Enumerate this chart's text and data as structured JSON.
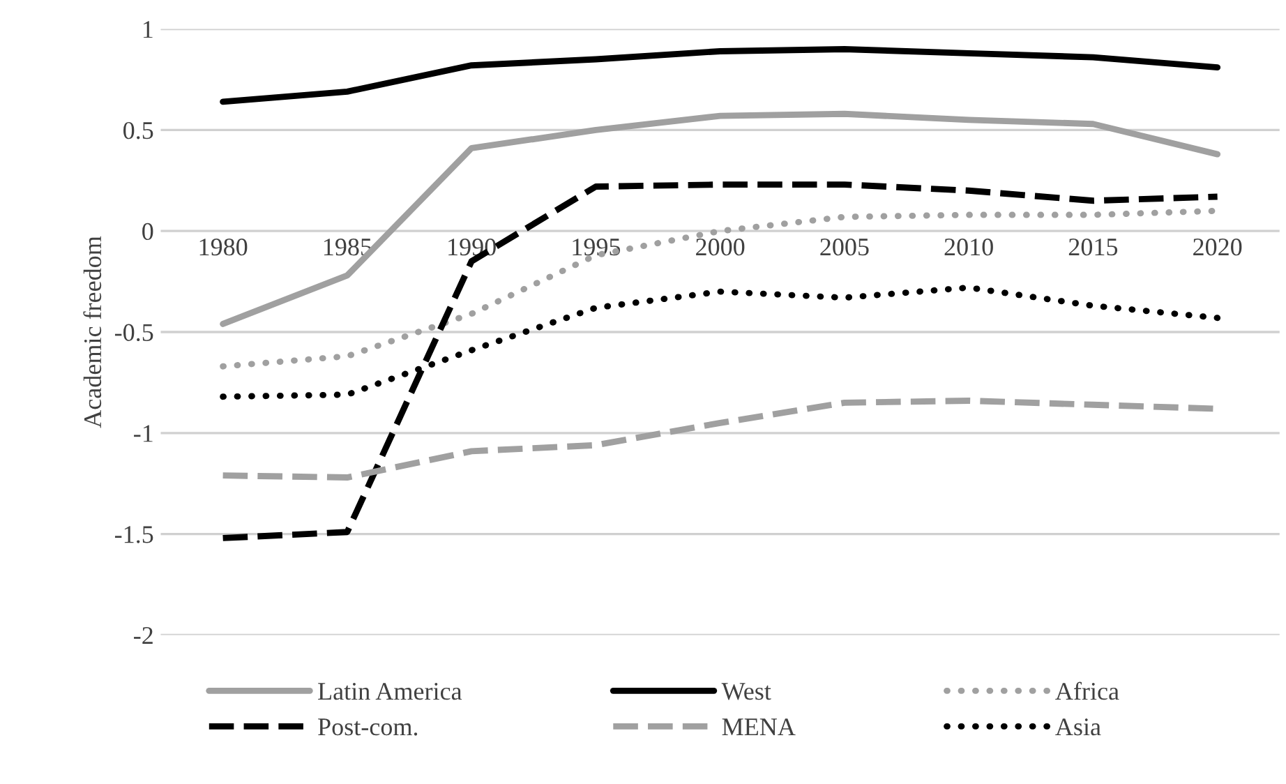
{
  "chart_data": {
    "type": "line",
    "ylabel": "Academic freedom",
    "categories": [
      "1980",
      "1985",
      "1990",
      "1995",
      "2000",
      "2005",
      "2010",
      "2015",
      "2020"
    ],
    "series": [
      {
        "name": "Latin America",
        "color": "#a0a0a0",
        "line_style": "solid",
        "values": [
          -0.46,
          -0.22,
          0.41,
          0.5,
          0.57,
          0.58,
          0.55,
          0.53,
          0.38
        ]
      },
      {
        "name": "West",
        "color": "#000000",
        "line_style": "solid",
        "values": [
          0.64,
          0.69,
          0.82,
          0.85,
          0.89,
          0.9,
          0.88,
          0.86,
          0.81
        ]
      },
      {
        "name": "Africa",
        "color": "#a0a0a0",
        "line_style": "dotted",
        "values": [
          -0.67,
          -0.62,
          -0.41,
          -0.12,
          0.0,
          0.07,
          0.08,
          0.08,
          0.1
        ]
      },
      {
        "name": "Post-com.",
        "color": "#000000",
        "line_style": "dashed",
        "values": [
          -1.52,
          -1.49,
          -0.15,
          0.22,
          0.23,
          0.23,
          0.2,
          0.15,
          0.17
        ]
      },
      {
        "name": "MENA",
        "color": "#a0a0a0",
        "line_style": "dashed",
        "values": [
          -1.21,
          -1.22,
          -1.09,
          -1.06,
          -0.95,
          -0.85,
          -0.84,
          -0.86,
          -0.88
        ]
      },
      {
        "name": "Asia",
        "color": "#000000",
        "line_style": "dotted",
        "values": [
          -0.82,
          -0.81,
          -0.59,
          -0.38,
          -0.3,
          -0.33,
          -0.28,
          -0.37,
          -0.43
        ]
      }
    ],
    "ylim": [
      -2,
      1
    ],
    "yticks": [
      -2,
      -1.5,
      -1,
      -0.5,
      0,
      0.5,
      1
    ],
    "grid": "y",
    "legend": "bottom",
    "marker": "none"
  }
}
